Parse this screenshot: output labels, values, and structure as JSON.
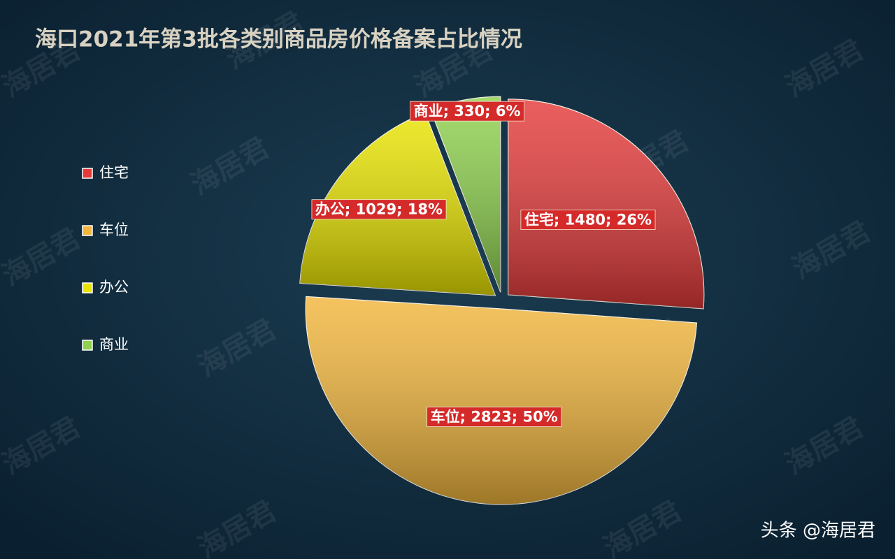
{
  "chart_data": {
    "type": "pie",
    "title": "海口2021年第3批各类别商品房价格备案占比情况",
    "categories": [
      "住宅",
      "车位",
      "办公",
      "商业"
    ],
    "values": [
      1480,
      2823,
      1029,
      330
    ],
    "value_labels": [
      "住宅; 1480; 26%",
      "车位; 2823; 50%",
      "办公; 1029; 18%",
      "商业; 330; 6%"
    ],
    "colors": [
      "#e53a3a",
      "#f2b63c",
      "#e9e400",
      "#8fd24e"
    ],
    "legend": "left"
  },
  "watermark": "海居君",
  "footer": "头条 @海居君"
}
